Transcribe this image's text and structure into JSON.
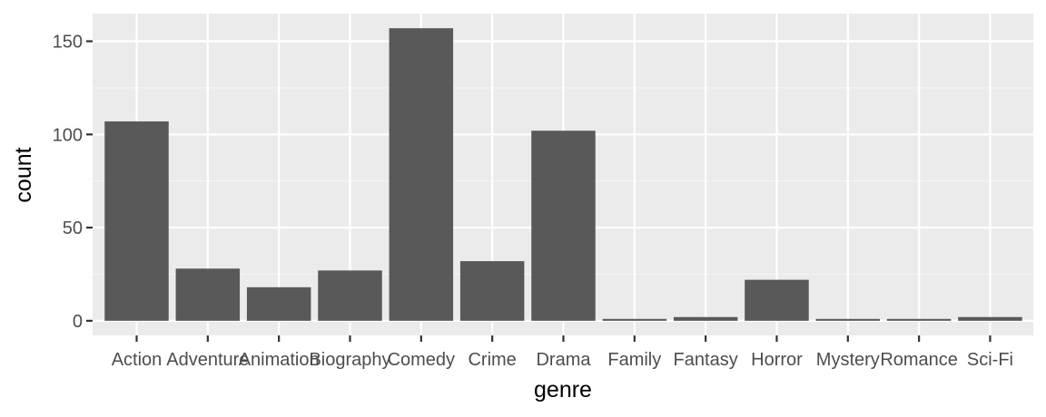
{
  "chart_data": {
    "type": "bar",
    "xlabel": "genre",
    "ylabel": "count",
    "categories": [
      "Action",
      "Adventure",
      "Animation",
      "Biography",
      "Comedy",
      "Crime",
      "Drama",
      "Family",
      "Fantasy",
      "Horror",
      "Mystery",
      "Romance",
      "Sci-Fi"
    ],
    "values": [
      107,
      28,
      18,
      27,
      157,
      32,
      102,
      1,
      2,
      22,
      1,
      1,
      2
    ],
    "ylim": [
      -7.85,
      164.85
    ],
    "y_ticks": [
      0,
      50,
      100,
      150
    ],
    "y_tick_labels": [
      "0",
      "50",
      "100",
      "150"
    ],
    "grid": true,
    "legend": "none",
    "colors": {
      "panel_background": "#ebebeb",
      "grid_major": "#ffffff",
      "grid_minor": "#f5f5f5",
      "bar_fill": "#595959",
      "tick_mark": "#333333",
      "tick_text": "#4d4d4d",
      "axis_title": "#000000"
    }
  }
}
